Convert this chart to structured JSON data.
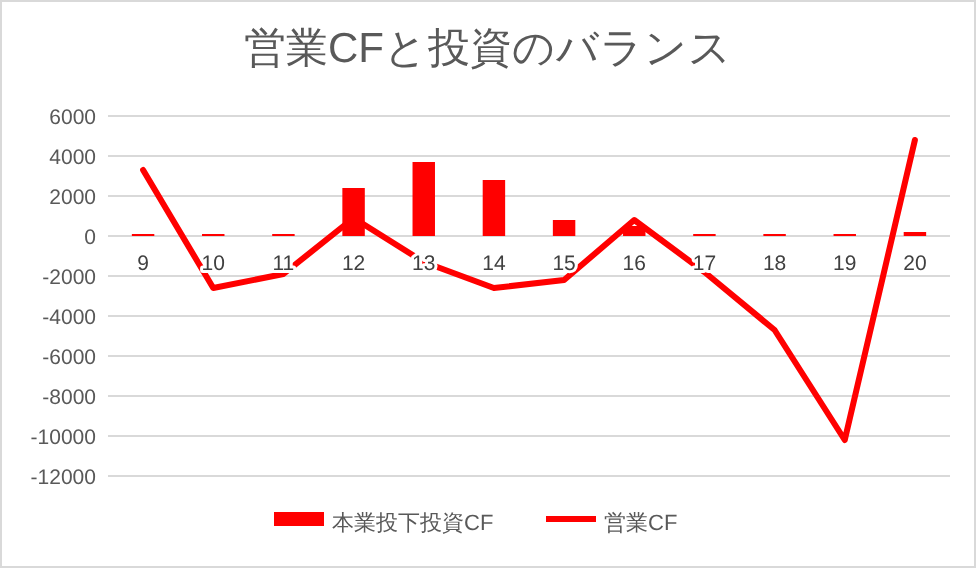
{
  "chart_data": {
    "type": "bar",
    "title": "営業CFと投資のバランス",
    "categories": [
      "9",
      "10",
      "11",
      "12",
      "13",
      "14",
      "15",
      "16",
      "17",
      "18",
      "19",
      "20"
    ],
    "series": [
      {
        "name": "本業投下投資CF",
        "color": "#ff0000",
        "values": [
          100,
          100,
          100,
          2400,
          3700,
          2800,
          800,
          500,
          100,
          100,
          100,
          200
        ]
      },
      {
        "name": "営業CF",
        "type": "line",
        "color": "#ff0000",
        "values": [
          3300,
          -2600,
          -1900,
          900,
          -1300,
          -2600,
          -2200,
          800,
          -1800,
          -4700,
          -10200,
          4800
        ]
      }
    ],
    "ylim": [
      -12000,
      6000
    ],
    "yticks": [
      -12000,
      -10000,
      -8000,
      -6000,
      -4000,
      -2000,
      0,
      2000,
      4000,
      6000
    ],
    "grid": "y",
    "legend": "bottom"
  }
}
